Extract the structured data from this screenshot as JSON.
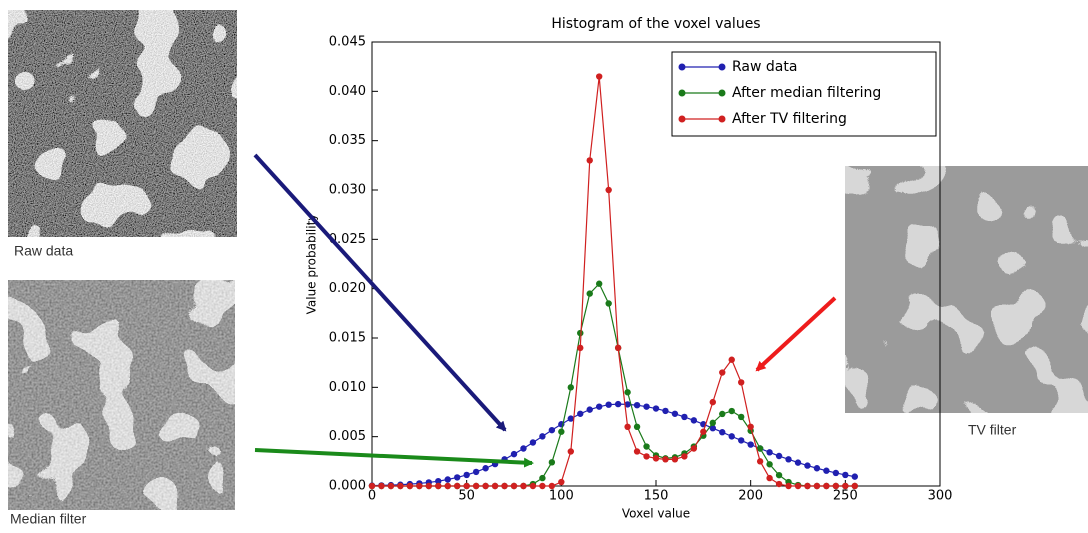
{
  "chart_data": {
    "type": "line",
    "title": "Histogram of the voxel values",
    "x_label": "Voxel value",
    "y_label": "Value probability",
    "x": [
      0,
      5,
      10,
      15,
      20,
      25,
      30,
      35,
      40,
      45,
      50,
      55,
      60,
      65,
      70,
      75,
      80,
      85,
      90,
      95,
      100,
      105,
      110,
      115,
      120,
      125,
      130,
      135,
      140,
      145,
      150,
      155,
      160,
      165,
      170,
      175,
      180,
      185,
      190,
      195,
      200,
      205,
      210,
      215,
      220,
      225,
      230,
      235,
      240,
      245,
      250,
      255
    ],
    "series": [
      {
        "name": "Raw data",
        "color": "#2020b0",
        "values": [
          4e-05,
          6e-05,
          9e-05,
          0.00013,
          0.00019,
          0.00026,
          0.00036,
          0.00049,
          0.00066,
          0.00087,
          0.00112,
          0.00143,
          0.0018,
          0.00222,
          0.0027,
          0.00323,
          0.0038,
          0.00441,
          0.00503,
          0.00566,
          0.00626,
          0.00683,
          0.00732,
          0.00774,
          0.00804,
          0.00824,
          0.0083,
          0.00827,
          0.00819,
          0.00804,
          0.00785,
          0.00761,
          0.00732,
          0.007,
          0.00665,
          0.00626,
          0.00586,
          0.00545,
          0.00503,
          0.00462,
          0.0042,
          0.0038,
          0.00341,
          0.00304,
          0.0027,
          0.00237,
          0.00207,
          0.0018,
          0.00155,
          0.00132,
          0.00112,
          0.00095
        ]
      },
      {
        "name": "After median filtering",
        "color": "#1a7a1a",
        "values": [
          0,
          0,
          0,
          0,
          0,
          0,
          0,
          0,
          0,
          0,
          0,
          0,
          0,
          0,
          0,
          0,
          0,
          0.0002,
          0.0008,
          0.0024,
          0.0055,
          0.01,
          0.0155,
          0.0195,
          0.0205,
          0.0185,
          0.014,
          0.0095,
          0.006,
          0.004,
          0.0031,
          0.0028,
          0.0029,
          0.0033,
          0.004,
          0.0051,
          0.0064,
          0.0073,
          0.0076,
          0.007,
          0.0056,
          0.0038,
          0.0022,
          0.0011,
          0.0004,
          0.0001,
          0,
          0,
          0,
          0,
          0,
          0
        ]
      },
      {
        "name": "After TV filtering",
        "color": "#d02020",
        "values": [
          0,
          0,
          0,
          0,
          0,
          0,
          0,
          0,
          0,
          0,
          0,
          0,
          0,
          0,
          0,
          0,
          0,
          0,
          0,
          0,
          0.0004,
          0.0035,
          0.014,
          0.033,
          0.0415,
          0.03,
          0.014,
          0.006,
          0.0035,
          0.003,
          0.0028,
          0.0027,
          0.0027,
          0.003,
          0.0038,
          0.0055,
          0.0085,
          0.0115,
          0.0128,
          0.0105,
          0.006,
          0.0025,
          0.0008,
          0.0002,
          0,
          0,
          0,
          0,
          0,
          0,
          0,
          0
        ]
      }
    ],
    "xlim": [
      0,
      300
    ],
    "xticks": [
      0,
      50,
      100,
      150,
      200,
      250,
      300
    ],
    "ylim": [
      0,
      0.045
    ],
    "yticks": [
      {
        "value": 0,
        "label": "0.000"
      },
      {
        "value": 0.005,
        "label": "0.005"
      },
      {
        "value": 0.01,
        "label": "0.010"
      },
      {
        "value": 0.015,
        "label": "0.015"
      },
      {
        "value": 0.02,
        "label": "0.020"
      },
      {
        "value": 0.025,
        "label": "0.025"
      },
      {
        "value": 0.03,
        "label": "0.030"
      },
      {
        "value": 0.035,
        "label": "0.035"
      },
      {
        "value": 0.04,
        "label": "0.040"
      },
      {
        "value": 0.045,
        "label": "0.045"
      }
    ],
    "grid": false,
    "legend": "upper right"
  },
  "panels": [
    {
      "caption": "Raw data"
    },
    {
      "caption": "Median filter"
    },
    {
      "caption": "TV filter"
    }
  ]
}
